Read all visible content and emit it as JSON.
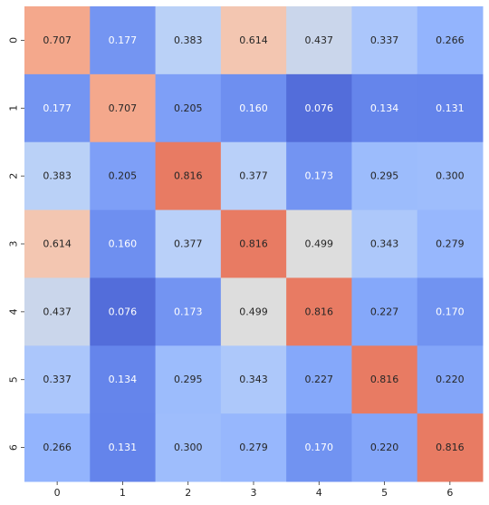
{
  "chart_data": {
    "type": "heatmap",
    "x_ticks": [
      "0",
      "1",
      "2",
      "3",
      "4",
      "5",
      "6"
    ],
    "y_ticks": [
      "0",
      "1",
      "2",
      "3",
      "4",
      "5",
      "6"
    ],
    "values": [
      [
        0.707,
        0.177,
        0.383,
        0.614,
        0.437,
        0.337,
        0.266
      ],
      [
        0.177,
        0.707,
        0.205,
        0.16,
        0.076,
        0.134,
        0.131
      ],
      [
        0.383,
        0.205,
        0.816,
        0.377,
        0.173,
        0.295,
        0.3
      ],
      [
        0.614,
        0.16,
        0.377,
        0.816,
        0.499,
        0.343,
        0.279
      ],
      [
        0.437,
        0.076,
        0.173,
        0.499,
        0.816,
        0.227,
        0.17
      ],
      [
        0.337,
        0.134,
        0.295,
        0.343,
        0.227,
        0.816,
        0.22
      ],
      [
        0.266,
        0.131,
        0.3,
        0.279,
        0.17,
        0.22,
        0.816
      ]
    ],
    "value_format": "0.000",
    "colormap": "coolwarm",
    "color_range": [
      0.0,
      1.0
    ],
    "annotated": true,
    "colorbar": false,
    "grid": false
  }
}
